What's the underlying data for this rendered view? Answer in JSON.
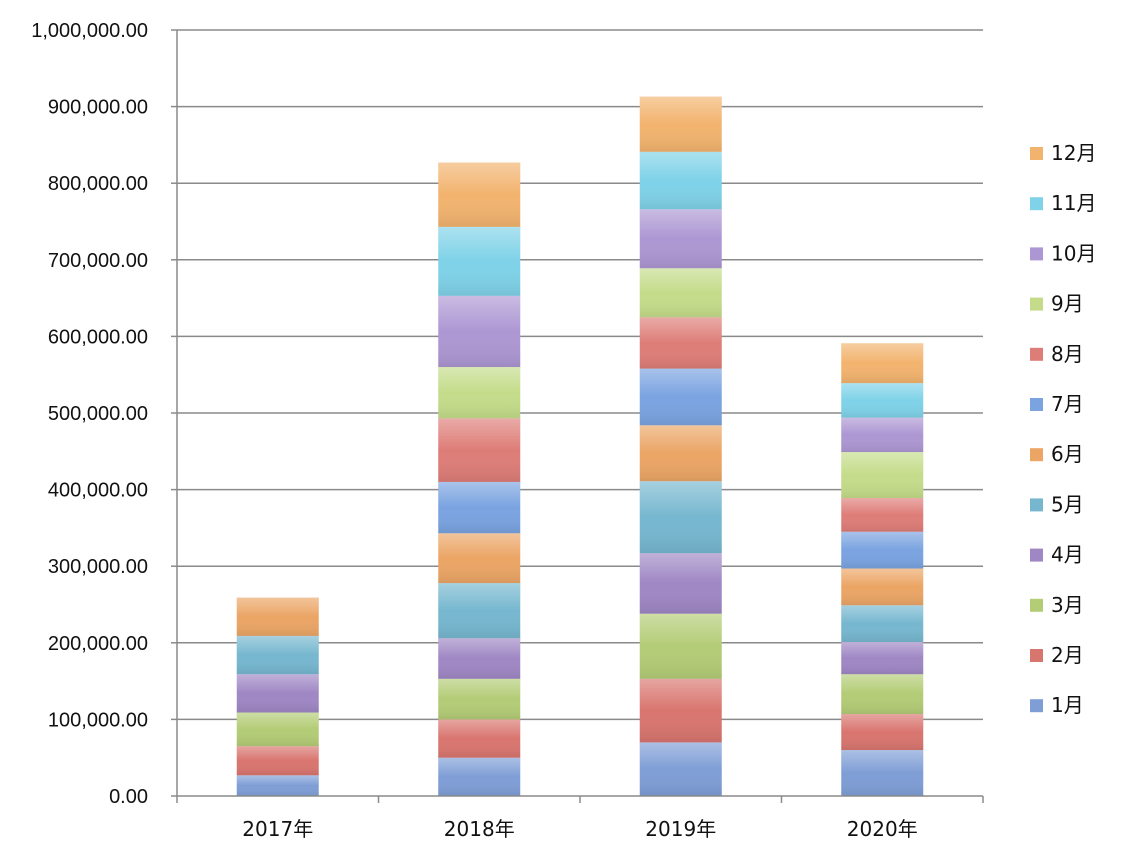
{
  "chart_data": {
    "type": "bar",
    "stacked": true,
    "title": "",
    "xlabel": "",
    "ylabel": "",
    "categories": [
      "2017年",
      "2018年",
      "2019年",
      "2020年"
    ],
    "ylim": [
      0,
      1000000
    ],
    "yticks": [
      0,
      100000,
      200000,
      300000,
      400000,
      500000,
      600000,
      700000,
      800000,
      900000,
      1000000
    ],
    "ytick_labels": [
      "0.00",
      "100,000.00",
      "200,000.00",
      "300,000.00",
      "400,000.00",
      "500,000.00",
      "600,000.00",
      "700,000.00",
      "800,000.00",
      "900,000.00",
      "1,000,000.00"
    ],
    "grid": true,
    "legend_position": "right",
    "series": [
      {
        "name": "1月",
        "color": "#7f9ed6",
        "values": [
          27000,
          50000,
          70000,
          60000
        ]
      },
      {
        "name": "2月",
        "color": "#d9756f",
        "values": [
          38000,
          50000,
          83000,
          47000
        ]
      },
      {
        "name": "3月",
        "color": "#b3cc76",
        "values": [
          44000,
          53000,
          85000,
          52000
        ]
      },
      {
        "name": "4月",
        "color": "#9f87c4",
        "values": [
          50000,
          53000,
          79000,
          42000
        ]
      },
      {
        "name": "5月",
        "color": "#76b7cf",
        "values": [
          50000,
          72000,
          94000,
          48000
        ]
      },
      {
        "name": "6月",
        "color": "#eba565",
        "values": [
          50000,
          65000,
          73000,
          48000
        ]
      },
      {
        "name": "7月",
        "color": "#7aa3e0",
        "values": [
          0,
          67000,
          74000,
          48000
        ]
      },
      {
        "name": "8月",
        "color": "#de7d78",
        "values": [
          0,
          83000,
          67000,
          44000
        ]
      },
      {
        "name": "9月",
        "color": "#c4dc8a",
        "values": [
          0,
          67000,
          64000,
          60000
        ]
      },
      {
        "name": "10月",
        "color": "#ad97d3",
        "values": [
          0,
          93000,
          77000,
          45000
        ]
      },
      {
        "name": "11月",
        "color": "#7fd2e8",
        "values": [
          0,
          90000,
          75000,
          45000
        ]
      },
      {
        "name": "12月",
        "color": "#f2b36e",
        "values": [
          0,
          84000,
          72000,
          52000
        ]
      }
    ]
  }
}
